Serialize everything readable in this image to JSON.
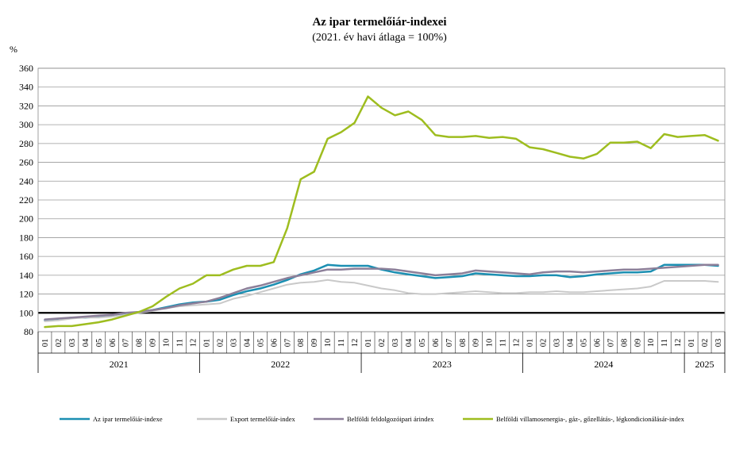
{
  "chart_data": {
    "type": "line",
    "title": "Az ipar termelőiár-indexei",
    "subtitle": "(2021. év havi átlaga = 100%)",
    "ylabel": "%",
    "ylim": [
      80,
      360
    ],
    "yticks": [
      80,
      100,
      120,
      140,
      160,
      180,
      200,
      220,
      240,
      260,
      280,
      300,
      320,
      340,
      360
    ],
    "grid": true,
    "legend_position": "bottom",
    "reference_line": 100,
    "month_labels": [
      "01",
      "02",
      "03",
      "04",
      "05",
      "06",
      "07",
      "08",
      "09",
      "10",
      "11",
      "12",
      "01",
      "02",
      "03",
      "04",
      "05",
      "06",
      "07",
      "08",
      "09",
      "10",
      "11",
      "12",
      "01",
      "02",
      "03",
      "04",
      "05",
      "06",
      "07",
      "08",
      "09",
      "10",
      "11",
      "12",
      "01",
      "02",
      "03",
      "04",
      "05",
      "06",
      "07",
      "08",
      "09",
      "10",
      "11",
      "12",
      "01",
      "02",
      "03"
    ],
    "years": [
      {
        "label": "2021",
        "start": 0,
        "count": 12
      },
      {
        "label": "2022",
        "start": 12,
        "count": 12
      },
      {
        "label": "2023",
        "start": 24,
        "count": 12
      },
      {
        "label": "2024",
        "start": 36,
        "count": 12
      },
      {
        "label": "2025",
        "start": 48,
        "count": 3
      }
    ],
    "series": [
      {
        "name": "Az ipar termelőiár-indexe",
        "color": "#1b8fb2",
        "width": 2.5,
        "values": [
          92,
          93,
          95,
          95,
          96,
          97,
          99,
          101,
          103,
          106,
          109,
          111,
          112,
          114,
          119,
          123,
          126,
          130,
          135,
          141,
          145,
          151,
          150,
          150,
          150,
          146,
          143,
          141,
          139,
          137,
          138,
          139,
          142,
          141,
          140,
          139,
          139,
          140,
          140,
          138,
          139,
          141,
          142,
          143,
          143,
          144,
          151,
          151,
          151,
          151,
          150
        ]
      },
      {
        "name": "Export termelőiár-index",
        "color": "#c9c9c9",
        "width": 2,
        "values": [
          91,
          92,
          94,
          95,
          95,
          96,
          98,
          100,
          102,
          105,
          107,
          108,
          109,
          110,
          115,
          118,
          122,
          126,
          130,
          132,
          133,
          135,
          133,
          132,
          129,
          126,
          124,
          121,
          120,
          120,
          121,
          122,
          123,
          122,
          121,
          121,
          122,
          122,
          123,
          122,
          122,
          123,
          124,
          125,
          126,
          128,
          134,
          134,
          134,
          134,
          133
        ]
      },
      {
        "name": "Belföldi feldolgozóipari árindex",
        "color": "#8c7f99",
        "width": 2.5,
        "values": [
          93,
          94,
          95,
          96,
          97,
          98,
          100,
          101,
          103,
          105,
          108,
          110,
          112,
          116,
          121,
          126,
          129,
          133,
          137,
          140,
          143,
          146,
          146,
          147,
          147,
          147,
          146,
          144,
          142,
          140,
          141,
          142,
          145,
          144,
          143,
          142,
          141,
          143,
          144,
          144,
          143,
          144,
          145,
          146,
          146,
          147,
          148,
          149,
          150,
          151,
          151
        ]
      },
      {
        "name": "Belföldi villamosenergia-, gáz-, gőzellátás-, légkondicionálásár-index",
        "color": "#9ebd1f",
        "width": 2.5,
        "values": [
          85,
          86,
          86,
          88,
          90,
          93,
          97,
          101,
          107,
          117,
          126,
          131,
          140,
          140,
          146,
          150,
          150,
          154,
          190,
          242,
          250,
          285,
          292,
          302,
          330,
          318,
          310,
          314,
          305,
          289,
          287,
          287,
          288,
          286,
          287,
          285,
          276,
          274,
          270,
          266,
          264,
          269,
          281,
          281,
          282,
          275,
          290,
          287,
          288,
          289,
          283
        ]
      }
    ]
  }
}
